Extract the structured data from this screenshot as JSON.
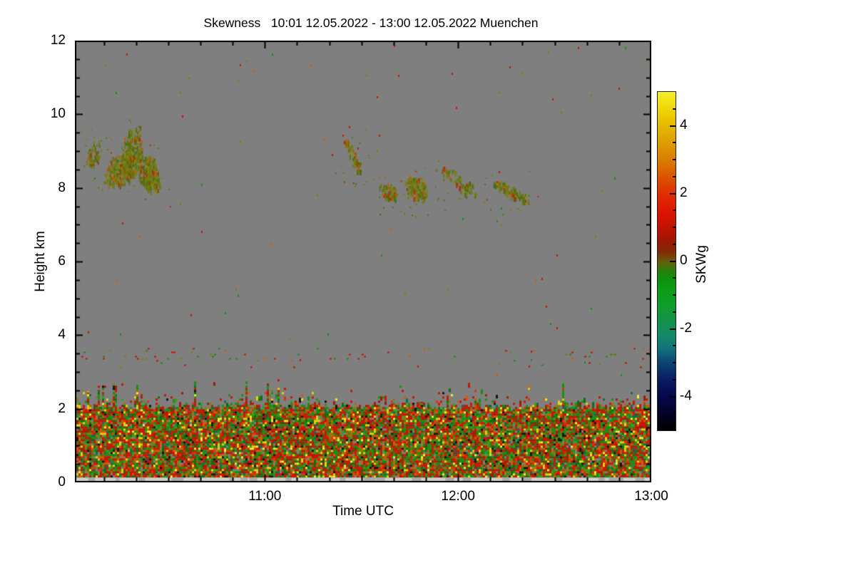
{
  "chart_data": {
    "type": "heatmap",
    "title": "Skewness   10:01 12.05.2022 - 13:00 12.05.2022 Muenchen",
    "xlabel": "Time UTC",
    "ylabel": "Height km",
    "station": "Muenchen",
    "time_start": "10:01 12.05.2022",
    "time_end": "13:00 12.05.2022",
    "x_range": {
      "start": "10:01",
      "end": "13:00",
      "start_min": 601,
      "end_min": 780
    },
    "x_ticks": [
      {
        "label": "11:00",
        "min": 660
      },
      {
        "label": "12:00",
        "min": 720
      },
      {
        "label": "13:00",
        "min": 780
      }
    ],
    "x_minor_step_min": 10,
    "y_range_km": [
      0,
      12
    ],
    "y_ticks": [
      {
        "label": "0",
        "km": 0
      },
      {
        "label": "2",
        "km": 2
      },
      {
        "label": "4",
        "km": 4
      },
      {
        "label": "6",
        "km": 6
      },
      {
        "label": "8",
        "km": 8
      },
      {
        "label": "10",
        "km": 10
      },
      {
        "label": "12",
        "km": 12
      }
    ],
    "y_minor_step_km": 0.5,
    "grid": false,
    "background_color": "#7f7f7f",
    "colorbar": {
      "label": "SKWg",
      "range": [
        -5,
        5
      ],
      "ticks": [
        {
          "label": "4",
          "value": 4
        },
        {
          "label": "2",
          "value": 2
        },
        {
          "label": "0",
          "value": 0
        },
        {
          "label": "-2",
          "value": -2
        },
        {
          "label": "-4",
          "value": -4
        }
      ],
      "minor_step": 0.5,
      "stops": [
        {
          "v": -5.0,
          "c": "#000000"
        },
        {
          "v": -4.4,
          "c": "#04042e"
        },
        {
          "v": -4.0,
          "c": "#07074b"
        },
        {
          "v": -3.5,
          "c": "#0a1d63"
        },
        {
          "v": -3.0,
          "c": "#0e4373"
        },
        {
          "v": -2.6,
          "c": "#11707a"
        },
        {
          "v": -2.2,
          "c": "#148a66"
        },
        {
          "v": -1.8,
          "c": "#13924d"
        },
        {
          "v": -1.3,
          "c": "#0f9c2c"
        },
        {
          "v": -0.9,
          "c": "#0d9c16"
        },
        {
          "v": -0.5,
          "c": "#0e8f0e"
        },
        {
          "v": -0.25,
          "c": "#2f7c0c"
        },
        {
          "v": -0.05,
          "c": "#5e650d"
        },
        {
          "v": 0.1,
          "c": "#74470a"
        },
        {
          "v": 0.3,
          "c": "#842805"
        },
        {
          "v": 0.6,
          "c": "#9d1803"
        },
        {
          "v": 1.0,
          "c": "#c21200"
        },
        {
          "v": 1.5,
          "c": "#df1500"
        },
        {
          "v": 1.9,
          "c": "#e02800"
        },
        {
          "v": 2.4,
          "c": "#da4d00"
        },
        {
          "v": 3.0,
          "c": "#d97f00"
        },
        {
          "v": 3.6,
          "c": "#dfa300"
        },
        {
          "v": 4.2,
          "c": "#e9c400"
        },
        {
          "v": 4.7,
          "c": "#f0e212"
        },
        {
          "v": 5.0,
          "c": "#f4ee2a"
        }
      ]
    },
    "speckle_palette": [
      {
        "c": "#c81600",
        "w": 0.24
      },
      {
        "c": "#9e1e00",
        "w": 0.08
      },
      {
        "c": "#e13200",
        "w": 0.06
      },
      {
        "c": "#d25c00",
        "w": 0.08
      },
      {
        "c": "#1e8c14",
        "w": 0.21
      },
      {
        "c": "#0e6e0e",
        "w": 0.07
      },
      {
        "c": "#36a01e",
        "w": 0.05
      },
      {
        "c": "#e6d400",
        "w": 0.05
      },
      {
        "c": "#f2f22a",
        "w": 0.02
      },
      {
        "c": "#121212",
        "w": 0.045
      },
      {
        "c": "#0d6a5a",
        "w": 0.03
      },
      {
        "c": "#7e7e12",
        "w": 0.045
      },
      {
        "c": "#5a4a08",
        "w": 0.02
      }
    ],
    "cloud_palette": [
      {
        "c": "#6e7a10",
        "w": 0.3
      },
      {
        "c": "#5c7010",
        "w": 0.22
      },
      {
        "c": "#7e7e14",
        "w": 0.16
      },
      {
        "c": "#4e680c",
        "w": 0.12
      },
      {
        "c": "#a83400",
        "w": 0.09
      },
      {
        "c": "#c25a00",
        "w": 0.06
      },
      {
        "c": "#8a8a20",
        "w": 0.05
      }
    ],
    "sparse_palette": [
      {
        "c": "#7e7e12",
        "w": 0.3
      },
      {
        "c": "#c81600",
        "w": 0.25
      },
      {
        "c": "#1e8c14",
        "w": 0.25
      },
      {
        "c": "#d25c00",
        "w": 0.2
      }
    ],
    "band_palette": [
      {
        "c": "#c81600",
        "w": 0.4
      },
      {
        "c": "#1e8c14",
        "w": 0.3
      },
      {
        "c": "#7e7e12",
        "w": 0.2
      },
      {
        "c": "#d25c00",
        "w": 0.1
      }
    ],
    "features": {
      "boundary_layer": {
        "top_km": 2.0,
        "ragged_to_km": 2.85,
        "fill_density": 0.95,
        "description": "dense multicolor turbulence speckle from surface to ~2.1 km with ragged decaying top"
      },
      "surface_row": {
        "h0_km": 0.02,
        "h1_km": 0.13,
        "color": "#cfcfcf"
      },
      "aerosol_band": {
        "h0_km": 3.32,
        "h1_km": 3.55,
        "density": 0.055,
        "description": "thin sparse speckle layer near 3.4 km across full record"
      },
      "sparse_noise_density": 0.0022,
      "clouds": [
        {
          "t0": 604.5,
          "t1": 609,
          "h0": 8.45,
          "h1": 9.25,
          "density": 0.55,
          "slant": 0.35
        },
        {
          "t0": 610,
          "t1": 620,
          "h0": 7.95,
          "h1": 8.95,
          "density": 0.85,
          "slant": 0.35
        },
        {
          "t0": 615,
          "t1": 622,
          "h0": 8.3,
          "h1": 9.65,
          "density": 0.7,
          "slant": 0.45
        },
        {
          "t0": 620,
          "t1": 627.5,
          "h0": 7.85,
          "h1": 8.9,
          "density": 0.8,
          "slant": -0.45
        },
        {
          "t0": 684.5,
          "t1": 689.5,
          "h0": 8.4,
          "h1": 9.35,
          "density": 0.6,
          "thin": true
        },
        {
          "t0": 695.5,
          "t1": 701,
          "h0": 7.6,
          "h1": 8.1,
          "density": 0.8,
          "slant": -0.2
        },
        {
          "t0": 703.5,
          "t1": 710.5,
          "h0": 7.55,
          "h1": 8.3,
          "density": 0.75,
          "slant": -0.25
        },
        {
          "t0": 714.5,
          "t1": 726,
          "h0": 7.7,
          "h1": 8.5,
          "density": 0.6,
          "thin": true
        },
        {
          "t0": 731,
          "t1": 742,
          "h0": 7.55,
          "h1": 8.15,
          "density": 0.65,
          "thin": true
        }
      ]
    }
  }
}
